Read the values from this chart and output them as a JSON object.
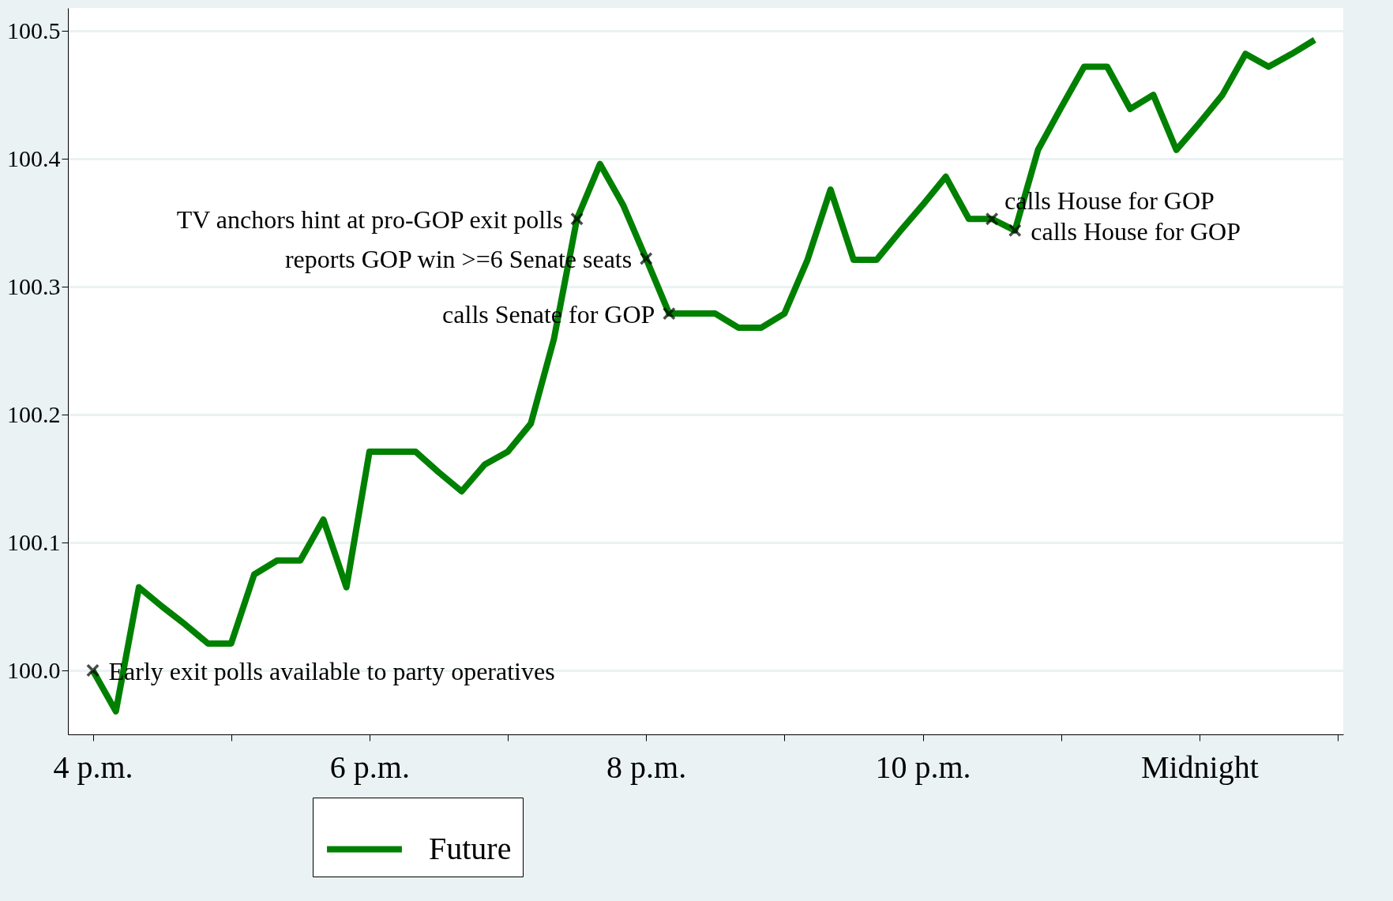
{
  "chart_data": {
    "type": "line",
    "categories": [
      "4 p.m.",
      null,
      null,
      null,
      null,
      null,
      null,
      null,
      null,
      null,
      null,
      null,
      "6 p.m.",
      null,
      null,
      null,
      null,
      null,
      null,
      null,
      null,
      null,
      null,
      null,
      "8 p.m.",
      null,
      null,
      null,
      null,
      null,
      null,
      null,
      null,
      null,
      null,
      null,
      "10 p.m.",
      null,
      null,
      null,
      null,
      null,
      null,
      null,
      null,
      null,
      null,
      null,
      "Midnight",
      null,
      null,
      null,
      null,
      null
    ],
    "series": [
      {
        "name": "Future",
        "color": "#008000",
        "values": [
          100.0,
          99.968,
          100.065,
          100.05,
          100.036,
          100.021,
          100.021,
          100.075,
          100.086,
          100.086,
          100.118,
          100.065,
          100.171,
          100.171,
          100.171,
          100.155,
          100.14,
          100.161,
          100.171,
          100.193,
          100.259,
          100.353,
          100.396,
          100.364,
          100.322,
          100.279,
          100.279,
          100.279,
          100.268,
          100.268,
          100.279,
          100.321,
          100.376,
          100.321,
          100.321,
          100.343,
          100.364,
          100.386,
          100.353,
          100.353,
          100.344,
          100.407,
          100.44,
          100.472,
          100.472,
          100.439,
          100.45,
          100.407,
          100.428,
          100.45,
          100.482,
          100.472,
          100.482,
          100.493
        ]
      },
      {
        "type": "scatter",
        "marker": "cross",
        "color": "#000000",
        "values": [
          100.0,
          null,
          null,
          null,
          null,
          null,
          null,
          null,
          null,
          null,
          null,
          null,
          null,
          null,
          null,
          null,
          null,
          null,
          null,
          null,
          null,
          100.353,
          null,
          null,
          100.322,
          100.279,
          null,
          null,
          null,
          null,
          null,
          null,
          null,
          null,
          null,
          null,
          null,
          null,
          null,
          100.353,
          100.344,
          null,
          null,
          null,
          null,
          null,
          null,
          null,
          null,
          null,
          null,
          null,
          null,
          null
        ]
      }
    ],
    "ylim": [
      99.95,
      100.518
    ],
    "yticks": [
      {
        "value": 100,
        "label": "100.0"
      },
      100.1,
      100.2,
      100.3,
      100.4,
      100.5
    ],
    "grid": "y",
    "legend": "bottom",
    "line_style": "solid",
    "annotations": [
      "Early exit polls available to party operatives",
      "TV anchors hint at pro-GOP exit polls",
      "reports GOP win >=6 Senate seats",
      "calls Senate for GOP",
      "calls House for GOP",
      "calls House for GOP"
    ]
  }
}
